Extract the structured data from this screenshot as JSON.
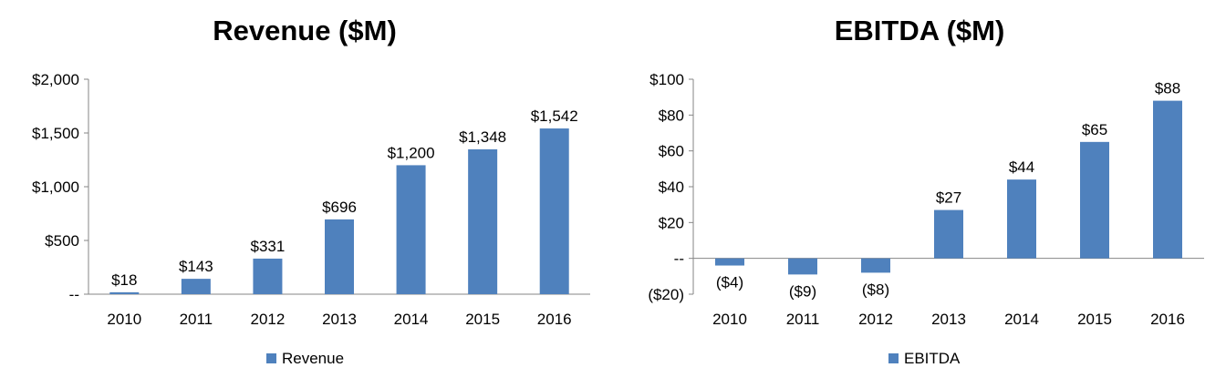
{
  "chart_data": [
    {
      "id": "revenue",
      "type": "bar",
      "title": "Revenue ($M)",
      "categories": [
        "2010",
        "2011",
        "2012",
        "2013",
        "2014",
        "2015",
        "2016"
      ],
      "series": [
        {
          "name": "Revenue",
          "values": [
            18,
            143,
            331,
            696,
            1200,
            1348,
            1542
          ],
          "labels": [
            "$18",
            "$143",
            "$331",
            "$696",
            "$1,200",
            "$1,348",
            "$1,542"
          ],
          "color": "#4F81BD"
        }
      ],
      "ylim": [
        0,
        2000
      ],
      "yticks": [
        0,
        500,
        1000,
        1500,
        2000
      ],
      "ytick_labels": [
        "--",
        "$500",
        "$1,000",
        "$1,500",
        "$2,000"
      ],
      "grid": false,
      "legend": "bottom",
      "xlabel": "",
      "ylabel": ""
    },
    {
      "id": "ebitda",
      "type": "bar",
      "title": "EBITDA ($M)",
      "categories": [
        "2010",
        "2011",
        "2012",
        "2013",
        "2014",
        "2015",
        "2016"
      ],
      "series": [
        {
          "name": "EBITDA",
          "values": [
            -4,
            -9,
            -8,
            27,
            44,
            65,
            88
          ],
          "labels": [
            "($4)",
            "($9)",
            "($8)",
            "$27",
            "$44",
            "$65",
            "$88"
          ],
          "color": "#4F81BD"
        }
      ],
      "ylim": [
        -20,
        100
      ],
      "yticks": [
        -20,
        0,
        20,
        40,
        60,
        80,
        100
      ],
      "ytick_labels": [
        "($20)",
        "--",
        "$20",
        "$40",
        "$60",
        "$80",
        "$100"
      ],
      "grid": false,
      "legend": "bottom",
      "xlabel": "",
      "ylabel": ""
    }
  ]
}
